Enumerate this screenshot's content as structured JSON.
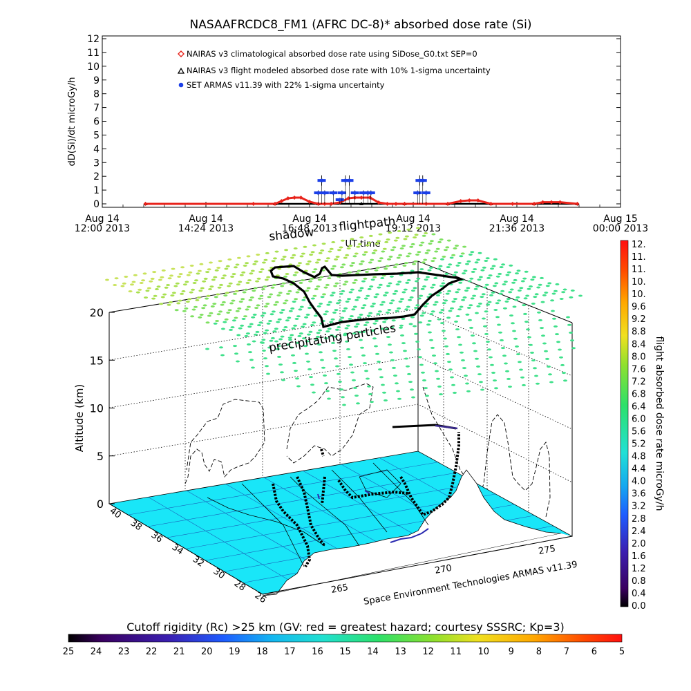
{
  "title": "NASAAFRCDC8_FM1 (AFRC DC-8)* absorbed dose rate (Si)",
  "chart_data": [
    {
      "type": "line",
      "title": "NASAAFRCDC8_FM1 (AFRC DC-8)* absorbed dose rate (Si)",
      "xlabel": "UT time",
      "ylabel": "dD(Si)/dt microGy/h",
      "ylim": [
        0,
        12
      ],
      "y_ticks": [
        "0",
        "1",
        "2",
        "3",
        "4",
        "5",
        "6",
        "7",
        "8",
        "9",
        "10",
        "11",
        "12"
      ],
      "x_tick_labels": [
        {
          "day": "Aug 14",
          "time": "12:00 2013"
        },
        {
          "day": "Aug 14",
          "time": "14:24 2013"
        },
        {
          "day": "Aug 14",
          "time": "16:48 2013"
        },
        {
          "day": "Aug 14",
          "time": "19:12 2013"
        },
        {
          "day": "Aug 14",
          "time": "21:36 2013"
        },
        {
          "day": "Aug 15",
          "time": "00:00 2013"
        }
      ],
      "x_range_hours": [
        12.0,
        24.0
      ],
      "legend_placement": "top-left",
      "series": [
        {
          "name": "NAIRAS v3 climatological absorbed dose rate using SiDose_G0.txt SEP=0",
          "color": "#e8231b",
          "marker": "diamond",
          "x": [
            13.0,
            15.5,
            16.0,
            16.15,
            16.3,
            16.45,
            16.6,
            16.8,
            17.0,
            17.15,
            17.3,
            17.5,
            17.7,
            17.85,
            18.0,
            18.2,
            18.4,
            18.6,
            18.8,
            19.0,
            19.5,
            20.0,
            20.3,
            20.5,
            20.7,
            21.0,
            21.5,
            22.0,
            22.2,
            22.4,
            22.6,
            23.0
          ],
          "values": [
            0,
            0,
            0,
            0.2,
            0.4,
            0.45,
            0.45,
            0.15,
            0,
            0,
            0,
            0.1,
            0.4,
            0.45,
            0.45,
            0.45,
            0.1,
            0,
            0,
            0,
            0,
            0,
            0.2,
            0.25,
            0.25,
            0,
            0,
            0,
            0.12,
            0.12,
            0.12,
            0
          ]
        },
        {
          "name": "NAIRAS v3 flight modeled absorbed dose rate with 10% 1-sigma uncertainty",
          "color": "#000000",
          "marker": "triangle",
          "x": [
            13.0,
            16.0,
            17.0,
            18.0,
            19.0,
            20.0,
            21.0,
            22.0,
            23.0
          ],
          "values": [
            0,
            0,
            0,
            0,
            0,
            0,
            0,
            0,
            0
          ]
        },
        {
          "name": "SET ARMAS v11.39 with 22% 1-sigma uncertainty",
          "color": "#1b3fe8",
          "marker": "dot",
          "x": [
            17.0,
            17.08,
            17.15,
            17.35,
            17.5,
            17.55,
            17.63,
            17.72,
            17.85,
            18.05,
            18.15,
            18.22,
            19.3,
            19.35,
            19.42,
            19.5
          ],
          "values": [
            0.8,
            1.7,
            0.8,
            0.8,
            0.3,
            0.8,
            1.7,
            1.7,
            0.8,
            0.8,
            0.8,
            0.8,
            0.8,
            1.7,
            1.7,
            0.8
          ]
        }
      ]
    },
    {
      "type": "scatter",
      "title": "",
      "zlabel": "Altitude (km)",
      "z_ticks": [
        "0",
        "5",
        "10",
        "15",
        "20"
      ],
      "zlim": [
        0,
        20
      ],
      "y_axis_ticks": [
        "40",
        "38",
        "36",
        "34",
        "32",
        "30",
        "28",
        "26"
      ],
      "x_axis_ticks": [
        "265",
        "270",
        "275"
      ],
      "annotations": [
        "flightpath",
        "shadow",
        "precipitating particles",
        "Space Environment Technologies ARMAS v11.39"
      ],
      "colorbar": {
        "label": "flight absorbed dose rate microGy/h",
        "placement": "right",
        "range": [
          0.0,
          12.0
        ],
        "ticks": [
          "12.",
          "11.",
          "11.",
          "10.",
          "10.",
          "9.6",
          "9.2",
          "8.8",
          "8.4",
          "8.0",
          "7.6",
          "7.2",
          "6.8",
          "6.4",
          "6.0",
          "5.6",
          "5.2",
          "4.8",
          "4.4",
          "4.0",
          "3.6",
          "3.2",
          "2.8",
          "2.4",
          "2.0",
          "1.6",
          "1.2",
          "0.8",
          "0.4",
          "0.0"
        ]
      },
      "surface_color": "#19e6f8",
      "grid": true
    },
    {
      "type": "heatmap",
      "title": "Cutoff rigidity (Rc) >25 km (GV: red = greatest hazard; courtesy SSSRC; Kp=3)",
      "ticks": [
        "25",
        "24",
        "23",
        "22",
        "21",
        "20",
        "19",
        "18",
        "17",
        "16",
        "15",
        "14",
        "13",
        "12",
        "11",
        "10",
        "9",
        "8",
        "7",
        "6",
        "5"
      ],
      "range": [
        25,
        5
      ],
      "placement": "bottom"
    }
  ]
}
